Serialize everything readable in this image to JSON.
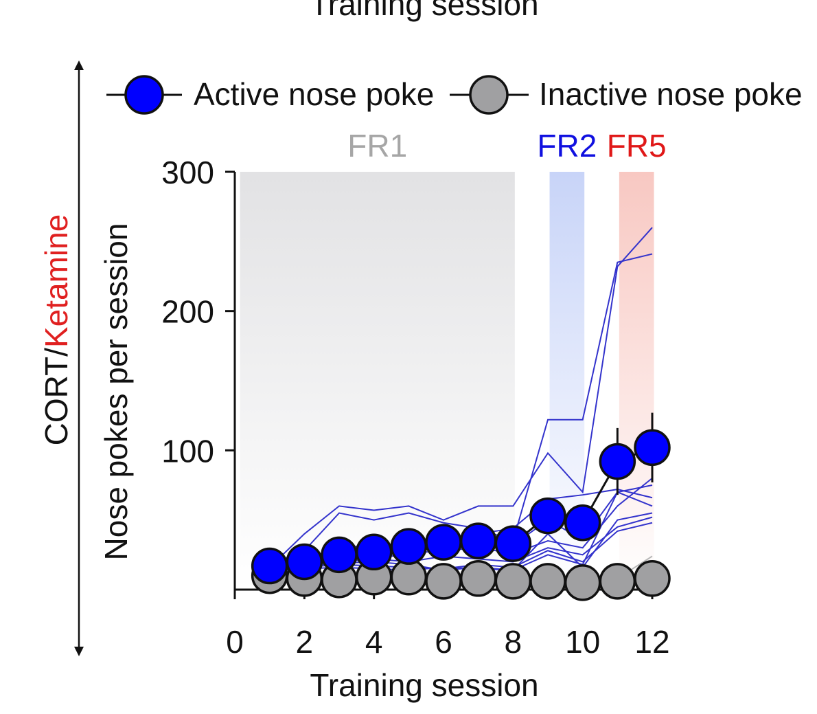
{
  "colors": {
    "active": "#0000ff",
    "inactive": "#a0a0a2",
    "individual": "#3333cc",
    "fr1_text": "#a6a6a6",
    "fr2_text": "#1010e0",
    "fr5_text": "#e01818",
    "ketamine": "#e02020",
    "fr1_band": "#e2e2e4",
    "fr2_band": "#c8d4f8",
    "fr5_band": "#f8c8c2"
  },
  "side_label": {
    "part1": "CORT/",
    "part2": "Ketamine"
  },
  "chart_data": {
    "type": "line",
    "top_title_clipped": "Training session",
    "xlabel": "Training session",
    "ylabel": "Nose pokes per session",
    "xlim": [
      0,
      12
    ],
    "ylim": [
      0,
      300
    ],
    "xticks": [
      0,
      2,
      4,
      6,
      8,
      10,
      12
    ],
    "yticks": [
      100,
      200,
      300
    ],
    "legend": {
      "placement": "top",
      "entries": [
        "Active nose poke",
        "Inactive nose poke"
      ]
    },
    "phases": [
      {
        "label": "FR1",
        "x_start": 0.15,
        "x_end": 8.05
      },
      {
        "label": "FR2",
        "x_start": 9.05,
        "x_end": 10.05
      },
      {
        "label": "FR5",
        "x_start": 11.05,
        "x_end": 12.05
      }
    ],
    "x": [
      1,
      2,
      3,
      4,
      5,
      6,
      7,
      8,
      9,
      10,
      11,
      12
    ],
    "series": [
      {
        "name": "Active nose poke",
        "values": [
          17,
          20,
          25,
          27,
          31,
          34,
          35,
          33,
          53,
          48,
          92,
          102
        ],
        "error": [
          5,
          6,
          7,
          7,
          8,
          9,
          9,
          9,
          10,
          10,
          24,
          25
        ]
      },
      {
        "name": "Inactive nose poke",
        "values": [
          10,
          8,
          7,
          9,
          9,
          6,
          8,
          6,
          6,
          5,
          6,
          8
        ],
        "error": [
          2,
          2,
          2,
          2,
          2,
          2,
          2,
          2,
          2,
          2,
          2,
          2
        ]
      }
    ],
    "individual_active": [
      [
        18,
        28,
        55,
        50,
        55,
        48,
        44,
        35,
        122,
        122,
        235,
        241
      ],
      [
        16,
        40,
        60,
        57,
        60,
        50,
        60,
        60,
        98,
        70,
        232,
        260
      ],
      [
        15,
        22,
        30,
        32,
        28,
        35,
        40,
        44,
        65,
        68,
        72,
        66
      ],
      [
        14,
        18,
        22,
        25,
        28,
        30,
        32,
        32,
        50,
        36,
        70,
        60
      ],
      [
        16,
        20,
        24,
        22,
        26,
        28,
        30,
        26,
        35,
        30,
        60,
        80
      ],
      [
        15,
        18,
        20,
        22,
        20,
        24,
        22,
        20,
        30,
        25,
        45,
        52
      ],
      [
        14,
        16,
        18,
        17,
        16,
        15,
        18,
        16,
        28,
        20,
        42,
        48
      ],
      [
        13,
        15,
        16,
        15,
        14,
        16,
        15,
        14,
        25,
        18,
        70,
        75
      ],
      [
        15,
        17,
        19,
        20,
        18,
        14,
        16,
        14,
        40,
        16,
        50,
        55
      ]
    ],
    "individual_inactive": [
      [
        12,
        10,
        8,
        10,
        10,
        8,
        9,
        7,
        8,
        6,
        8,
        24
      ],
      [
        9,
        7,
        6,
        8,
        8,
        5,
        7,
        5,
        5,
        4,
        5,
        7
      ]
    ]
  }
}
